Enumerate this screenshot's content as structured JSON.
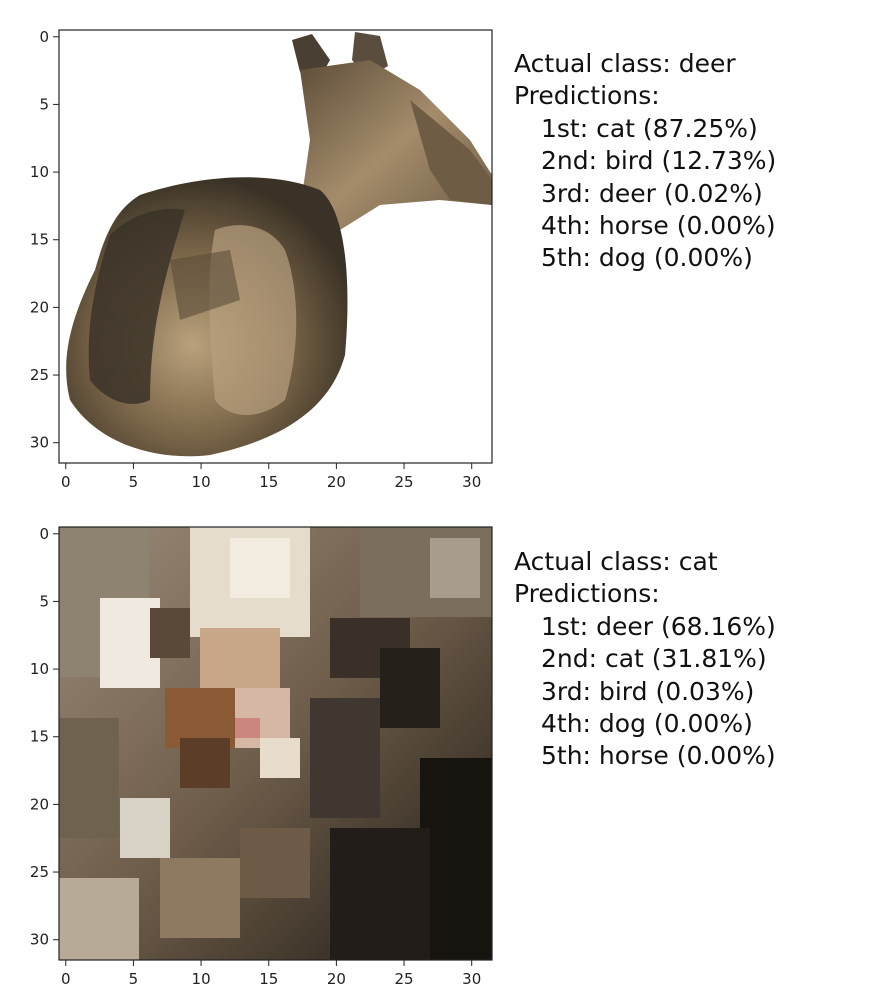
{
  "chart_data": [
    {
      "type": "image",
      "x_ticks": [
        0,
        5,
        10,
        15,
        20,
        25,
        30
      ],
      "y_ticks": [
        0,
        5,
        10,
        15,
        20,
        25,
        30
      ],
      "xlim": [
        -0.5,
        31.5
      ],
      "ylim": [
        31.5,
        -0.5
      ],
      "actual_label": "Actual class: deer",
      "predictions_label": "Predictions:",
      "predictions": [
        "1st: cat (87.25%)",
        "2nd: bird (12.73%)",
        "3rd: deer (0.02%)",
        "4th: horse (0.00%)",
        "5th: dog (0.00%)"
      ]
    },
    {
      "type": "image",
      "x_ticks": [
        0,
        5,
        10,
        15,
        20,
        25,
        30
      ],
      "y_ticks": [
        0,
        5,
        10,
        15,
        20,
        25,
        30
      ],
      "xlim": [
        -0.5,
        31.5
      ],
      "ylim": [
        31.5,
        -0.5
      ],
      "actual_label": "Actual class: cat",
      "predictions_label": "Predictions:",
      "predictions": [
        "1st: deer (68.16%)",
        "2nd: cat (31.81%)",
        "3rd: bird (0.03%)",
        "4th: dog (0.00%)",
        "5th: horse (0.00%)"
      ]
    }
  ]
}
